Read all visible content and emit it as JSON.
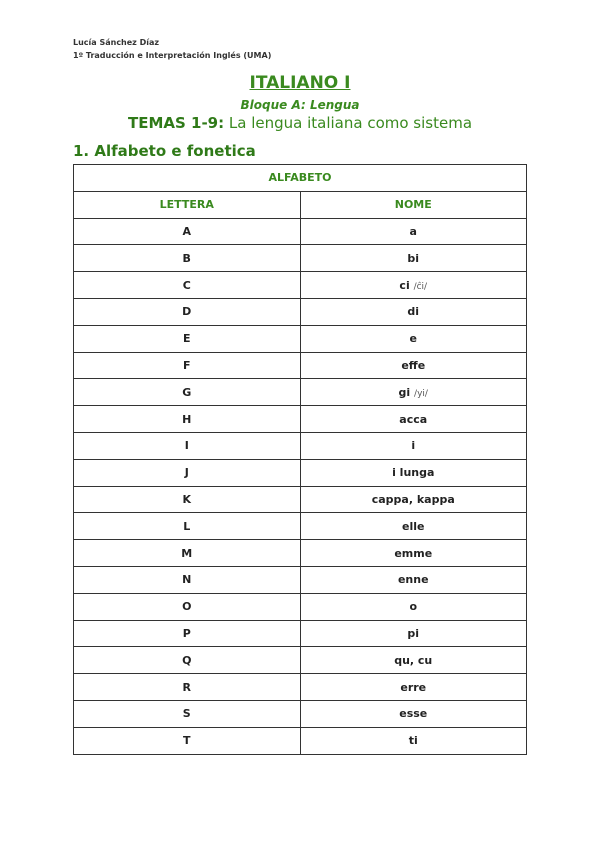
{
  "header": {
    "author": "Lucía Sánchez Díaz",
    "course": "1º Traducción e Interpretación Inglés (UMA)"
  },
  "title": "ITALIANO I",
  "subtitle": "Bloque A: Lengua",
  "temas": {
    "label": "TEMAS 1-9:",
    "text": " La lengua italiana como sistema"
  },
  "section": "1. Alfabeto e fonetica",
  "table": {
    "caption": "ALFABETO",
    "columns": [
      "LETTERA",
      "NOME"
    ],
    "rows": [
      {
        "letter": "A",
        "name": "a"
      },
      {
        "letter": "B",
        "name": "bi"
      },
      {
        "letter": "C",
        "name": "ci",
        "phon": "/ĉi/"
      },
      {
        "letter": "D",
        "name": "di"
      },
      {
        "letter": "E",
        "name": "e"
      },
      {
        "letter": "F",
        "name": "effe"
      },
      {
        "letter": "G",
        "name": "gi",
        "phon": "/yi/"
      },
      {
        "letter": "H",
        "name": "acca"
      },
      {
        "letter": "I",
        "name": "i"
      },
      {
        "letter": "J",
        "name": "i lunga"
      },
      {
        "letter": "K",
        "name": "cappa, kappa"
      },
      {
        "letter": "L",
        "name": "elle"
      },
      {
        "letter": "M",
        "name": "emme"
      },
      {
        "letter": "N",
        "name": "enne"
      },
      {
        "letter": "O",
        "name": "o"
      },
      {
        "letter": "P",
        "name": "pi"
      },
      {
        "letter": "Q",
        "name": "qu, cu"
      },
      {
        "letter": "R",
        "name": "erre"
      },
      {
        "letter": "S",
        "name": "esse"
      },
      {
        "letter": "T",
        "name": "ti"
      }
    ]
  },
  "colors": {
    "accent": "#3a8a1f"
  }
}
